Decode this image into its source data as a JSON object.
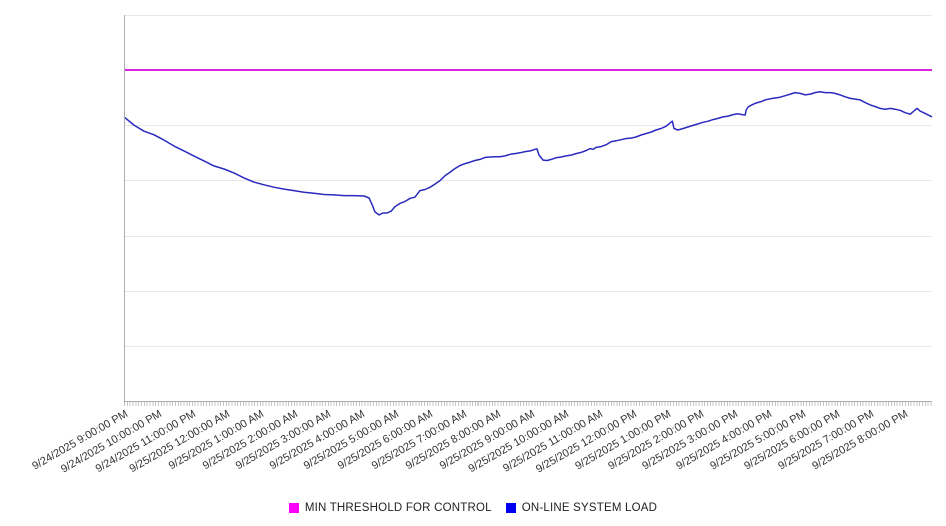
{
  "chart_data": {
    "type": "line",
    "title": "",
    "xlabel": "",
    "ylabel": "",
    "x_unit": "hours since 9/24/2025 9:00:00 PM",
    "y_unit": "relative load (y-axis has no visible labels; values are % of plot height)",
    "y_axis_labels_visible": false,
    "x_range_hours": [
      0,
      23.83
    ],
    "ylim": [
      0,
      100
    ],
    "grid": "horizontal gridlines on, 7 equal intervals",
    "legend_position": "bottom-center",
    "minor_ticks": "dense minute ticks along entire bottom axis",
    "x_tick_labels": [
      "9/24/2025 9:00:00 PM",
      "9/24/2025 10:00:00 PM",
      "9/24/2025 11:00:00 PM",
      "9/25/2025 12:00:00 AM",
      "9/25/2025 1:00:00 AM",
      "9/25/2025 2:00:00 AM",
      "9/25/2025 3:00:00 AM",
      "9/25/2025 4:00:00 AM",
      "9/25/2025 5:00:00 AM",
      "9/25/2025 6:00:00 AM",
      "9/25/2025 7:00:00 AM",
      "9/25/2025 8:00:00 AM",
      "9/25/2025 9:00:00 AM",
      "9/25/2025 10:00:00 AM",
      "9/25/2025 11:00:00 AM",
      "9/25/2025 12:00:00 PM",
      "9/25/2025 1:00:00 PM",
      "9/25/2025 2:00:00 PM",
      "9/25/2025 3:00:00 PM",
      "9/25/2025 4:00:00 PM",
      "9/25/2025 5:00:00 PM",
      "9/25/2025 6:00:00 PM",
      "9/25/2025 7:00:00 PM",
      "9/25/2025 8:00:00 PM"
    ],
    "series": [
      {
        "name": "MIN THRESHOLD FOR CONTROL",
        "kind": "threshold",
        "line_color": "#dc23dc",
        "legend_color": "#ff00ff",
        "value": 85.8
      },
      {
        "name": "ON-LINE SYSTEM LOAD",
        "kind": "line",
        "line_color": "#2a2abe",
        "legend_color": "#0000ee",
        "points": [
          [
            0,
            73.6
          ],
          [
            0.29,
            71.5
          ],
          [
            0.59,
            69.9
          ],
          [
            0.88,
            69
          ],
          [
            1.18,
            67.6
          ],
          [
            1.47,
            66.1
          ],
          [
            1.77,
            64.8
          ],
          [
            2.06,
            63.5
          ],
          [
            2.36,
            62.2
          ],
          [
            2.65,
            60.9
          ],
          [
            2.95,
            60.1
          ],
          [
            3.24,
            59.1
          ],
          [
            3.54,
            57.8
          ],
          [
            3.83,
            56.7
          ],
          [
            4.13,
            56
          ],
          [
            4.42,
            55.4
          ],
          [
            4.72,
            54.9
          ],
          [
            5.01,
            54.5
          ],
          [
            5.31,
            54.1
          ],
          [
            5.6,
            53.8
          ],
          [
            5.9,
            53.5
          ],
          [
            6.19,
            53.4
          ],
          [
            6.49,
            53.2
          ],
          [
            6.78,
            53.2
          ],
          [
            7.08,
            53.1
          ],
          [
            7.23,
            52.6
          ],
          [
            7.32,
            50.8
          ],
          [
            7.4,
            49
          ],
          [
            7.52,
            48.2
          ],
          [
            7.64,
            48.7
          ],
          [
            7.76,
            48.7
          ],
          [
            7.88,
            49.2
          ],
          [
            7.99,
            50.3
          ],
          [
            8.14,
            51.2
          ],
          [
            8.29,
            51.7
          ],
          [
            8.44,
            52.5
          ],
          [
            8.58,
            52.8
          ],
          [
            8.73,
            54.5
          ],
          [
            8.88,
            54.8
          ],
          [
            9.03,
            55.4
          ],
          [
            9.17,
            56.2
          ],
          [
            9.32,
            57.1
          ],
          [
            9.47,
            58.4
          ],
          [
            9.62,
            59.3
          ],
          [
            9.76,
            60.2
          ],
          [
            9.91,
            61
          ],
          [
            10.06,
            61.5
          ],
          [
            10.21,
            61.9
          ],
          [
            10.35,
            62.3
          ],
          [
            10.5,
            62.6
          ],
          [
            10.65,
            63.1
          ],
          [
            10.8,
            63.2
          ],
          [
            10.94,
            63.3
          ],
          [
            11.09,
            63.3
          ],
          [
            11.24,
            63.5
          ],
          [
            11.39,
            63.9
          ],
          [
            11.53,
            64.1
          ],
          [
            11.68,
            64.3
          ],
          [
            11.83,
            64.6
          ],
          [
            11.98,
            64.8
          ],
          [
            12.12,
            65.2
          ],
          [
            12.18,
            65.3
          ],
          [
            12.24,
            63.7
          ],
          [
            12.36,
            62.4
          ],
          [
            12.48,
            62.3
          ],
          [
            12.6,
            62.6
          ],
          [
            12.74,
            63
          ],
          [
            12.89,
            63.2
          ],
          [
            13.04,
            63.5
          ],
          [
            13.19,
            63.7
          ],
          [
            13.33,
            64.1
          ],
          [
            13.48,
            64.4
          ],
          [
            13.63,
            64.9
          ],
          [
            13.75,
            65.4
          ],
          [
            13.84,
            65.2
          ],
          [
            13.92,
            65.7
          ],
          [
            14.07,
            65.9
          ],
          [
            14.22,
            66.4
          ],
          [
            14.37,
            67.2
          ],
          [
            14.51,
            67.4
          ],
          [
            14.66,
            67.7
          ],
          [
            14.81,
            68
          ],
          [
            14.96,
            68.1
          ],
          [
            15.1,
            68.4
          ],
          [
            15.25,
            68.9
          ],
          [
            15.4,
            69.3
          ],
          [
            15.55,
            69.7
          ],
          [
            15.69,
            70.2
          ],
          [
            15.84,
            70.6
          ],
          [
            15.99,
            71.2
          ],
          [
            16.14,
            72.3
          ],
          [
            16.17,
            72.5
          ],
          [
            16.22,
            70.6
          ],
          [
            16.34,
            70.2
          ],
          [
            16.49,
            70.6
          ],
          [
            16.64,
            71
          ],
          [
            16.78,
            71.4
          ],
          [
            16.93,
            71.8
          ],
          [
            17.08,
            72.2
          ],
          [
            17.23,
            72.5
          ],
          [
            17.37,
            72.9
          ],
          [
            17.52,
            73.2
          ],
          [
            17.67,
            73.6
          ],
          [
            17.82,
            73.8
          ],
          [
            17.96,
            74.2
          ],
          [
            18.11,
            74.4
          ],
          [
            18.23,
            74.2
          ],
          [
            18.32,
            74.1
          ],
          [
            18.35,
            75.4
          ],
          [
            18.41,
            76.2
          ],
          [
            18.47,
            76.5
          ],
          [
            18.61,
            77.1
          ],
          [
            18.76,
            77.5
          ],
          [
            18.91,
            78
          ],
          [
            19.06,
            78.3
          ],
          [
            19.2,
            78.5
          ],
          [
            19.35,
            78.7
          ],
          [
            19.5,
            79.1
          ],
          [
            19.65,
            79.5
          ],
          [
            19.79,
            79.9
          ],
          [
            19.94,
            79.7
          ],
          [
            20.09,
            79.3
          ],
          [
            20.24,
            79.5
          ],
          [
            20.38,
            79.9
          ],
          [
            20.53,
            80.1
          ],
          [
            20.68,
            79.9
          ],
          [
            20.83,
            79.9
          ],
          [
            20.97,
            79.7
          ],
          [
            21.12,
            79.3
          ],
          [
            21.27,
            78.8
          ],
          [
            21.42,
            78.4
          ],
          [
            21.56,
            78.2
          ],
          [
            21.71,
            78
          ],
          [
            21.86,
            77.3
          ],
          [
            22.01,
            76.7
          ],
          [
            22.15,
            76.3
          ],
          [
            22.3,
            75.8
          ],
          [
            22.45,
            75.6
          ],
          [
            22.6,
            75.8
          ],
          [
            22.74,
            75.6
          ],
          [
            22.89,
            75.3
          ],
          [
            23.04,
            74.7
          ],
          [
            23.19,
            74.3
          ],
          [
            23.33,
            75.4
          ],
          [
            23.39,
            75.8
          ],
          [
            23.48,
            75.1
          ],
          [
            23.63,
            74.5
          ],
          [
            23.78,
            73.8
          ],
          [
            23.83,
            73.6
          ]
        ]
      }
    ],
    "colors": {
      "gridline": "#e8e8e8",
      "axis": "#aeaeae",
      "minor_tick": "#c4c4c4",
      "tick_label_text": "#333333",
      "legend_text": "#222222",
      "background": "#ffffff"
    }
  }
}
